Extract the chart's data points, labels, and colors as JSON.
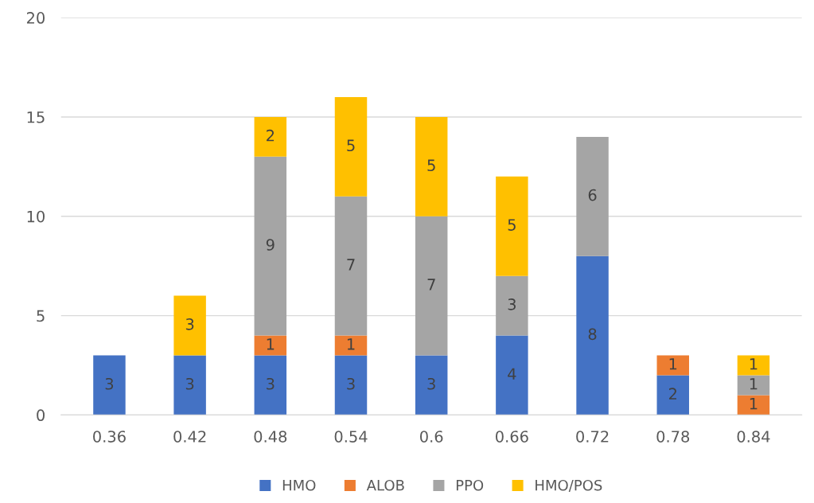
{
  "chart_data": {
    "type": "bar",
    "stacked": true,
    "categories": [
      "0.36",
      "0.42",
      "0.48",
      "0.54",
      "0.6",
      "0.66",
      "0.72",
      "0.78",
      "0.84"
    ],
    "series": [
      {
        "name": "HMO",
        "color": "#4472c4",
        "values": [
          3,
          3,
          3,
          3,
          3,
          4,
          8,
          2,
          null
        ]
      },
      {
        "name": "ALOB",
        "color": "#ed7d31",
        "values": [
          null,
          null,
          1,
          1,
          null,
          null,
          null,
          1,
          1
        ]
      },
      {
        "name": "PPO",
        "color": "#a5a5a5",
        "values": [
          null,
          null,
          9,
          7,
          7,
          3,
          6,
          null,
          1
        ]
      },
      {
        "name": "HMO/POS",
        "color": "#ffc000",
        "values": [
          null,
          3,
          2,
          5,
          5,
          5,
          null,
          null,
          1
        ]
      }
    ],
    "ylim": [
      0,
      20
    ],
    "yticks": [
      0,
      5,
      10,
      15,
      20
    ],
    "grid": "y",
    "legend": "bottom",
    "data_labels": true
  }
}
